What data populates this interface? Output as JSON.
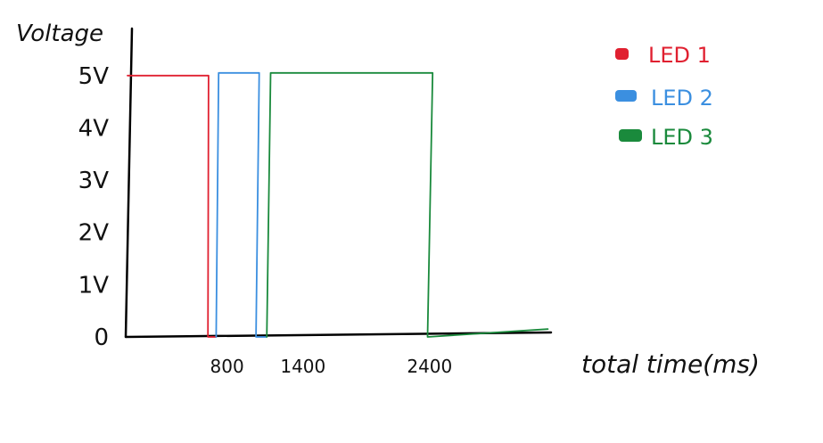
{
  "chart_data": {
    "type": "line",
    "title": "",
    "ylabel": "Voltage",
    "xlabel": "total time(ms)",
    "y_ticks": [
      {
        "value": 0,
        "label": "0"
      },
      {
        "value": 1,
        "label": "1V"
      },
      {
        "value": 2,
        "label": "2V"
      },
      {
        "value": 3,
        "label": "3V"
      },
      {
        "value": 4,
        "label": "4V"
      },
      {
        "value": 5,
        "label": "5V"
      }
    ],
    "x_ticks": [
      {
        "value": 800,
        "label": "800"
      },
      {
        "value": 1400,
        "label": "1400"
      },
      {
        "value": 2400,
        "label": "2400"
      }
    ],
    "xlim": [
      0,
      3500
    ],
    "ylim": [
      0,
      5.9
    ],
    "grid": false,
    "legend_position": "top-right",
    "series": [
      {
        "name": "LED 1",
        "color": "#e02030",
        "points": [
          [
            0,
            5.0
          ],
          [
            630,
            5.0
          ],
          [
            640,
            5.0
          ],
          [
            635,
            0
          ],
          [
            680,
            0
          ],
          [
            700,
            0
          ]
        ]
      },
      {
        "name": "LED 2",
        "color": "#3b8fe0",
        "points": [
          [
            700,
            0
          ],
          [
            720,
            5.05
          ],
          [
            1040,
            5.05
          ],
          [
            1015,
            0
          ],
          [
            1100,
            0
          ]
        ]
      },
      {
        "name": "LED 3",
        "color": "#1a8a3c",
        "points": [
          [
            1100,
            0
          ],
          [
            1130,
            5.05
          ],
          [
            2410,
            5.05
          ],
          [
            2370,
            0
          ],
          [
            3320,
            0.15
          ]
        ]
      }
    ]
  }
}
